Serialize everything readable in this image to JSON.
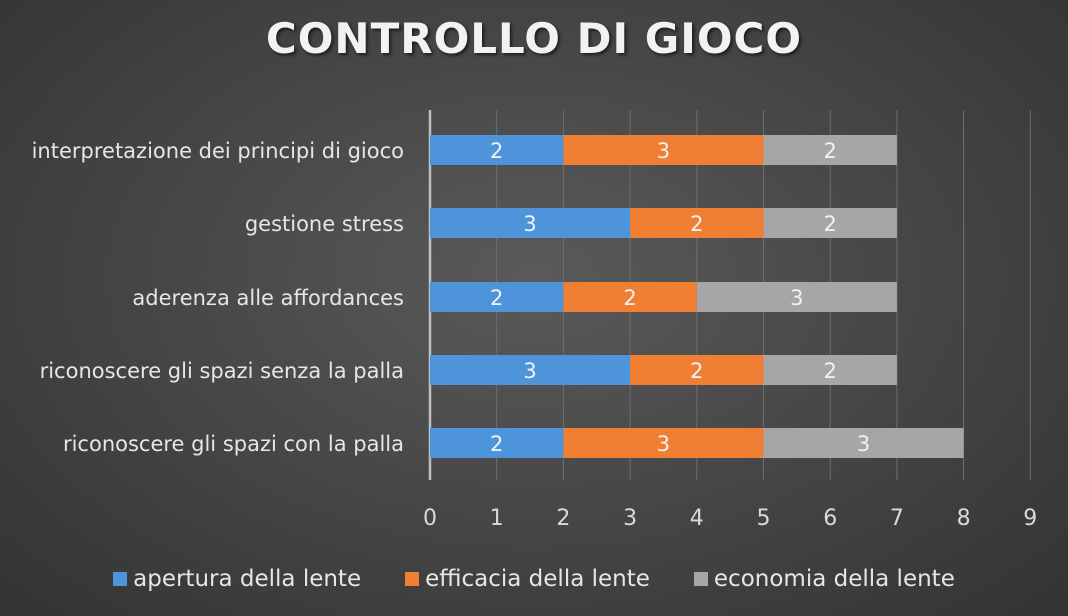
{
  "chart_data": {
    "type": "bar",
    "orientation": "horizontal",
    "stacked": true,
    "title": "CONTROLLO DI GIOCO",
    "categories": [
      "interpretazione dei principi di gioco",
      "gestione stress",
      "aderenza alle affordances",
      "riconoscere gli spazi senza la palla",
      "riconoscere gli spazi con la palla"
    ],
    "series": [
      {
        "name": "apertura della lente",
        "color": "#4e94db",
        "values": [
          2,
          3,
          2,
          3,
          2
        ]
      },
      {
        "name": "efficacia della lente",
        "color": "#f07f33",
        "values": [
          3,
          2,
          2,
          2,
          3
        ]
      },
      {
        "name": "economia della lente",
        "color": "#a6a6a6",
        "values": [
          2,
          2,
          3,
          2,
          3
        ]
      }
    ],
    "xlim": [
      0,
      9
    ],
    "xticks": [
      "0",
      "1",
      "2",
      "3",
      "4",
      "5",
      "6",
      "7",
      "8",
      "9"
    ],
    "grid": true,
    "data_labels": true,
    "legend_position": "bottom"
  }
}
